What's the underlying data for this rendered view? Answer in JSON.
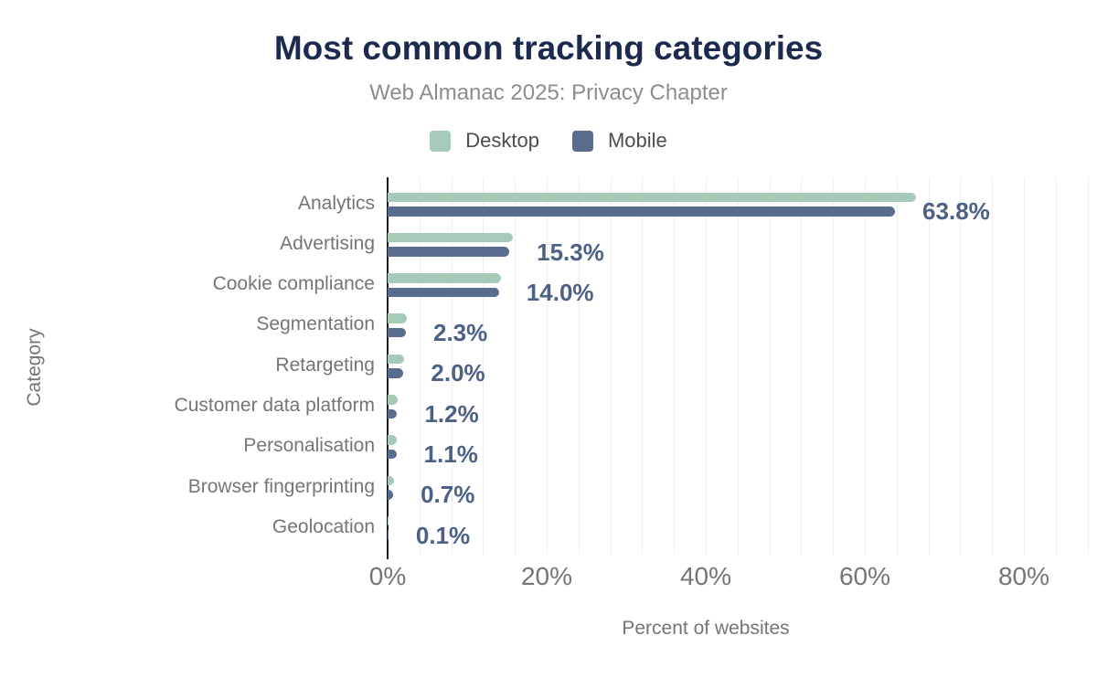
{
  "title": "Most common tracking categories",
  "subtitle": "Web Almanac 2025: Privacy Chapter",
  "legend": {
    "items": [
      {
        "label": "Desktop",
        "color": "#a5cab7"
      },
      {
        "label": "Mobile",
        "color": "#5a6c8e"
      }
    ]
  },
  "chart_data": {
    "type": "bar",
    "orientation": "horizontal",
    "title": "Most common tracking categories",
    "subtitle": "Web Almanac 2025: Privacy Chapter",
    "xlabel": "Percent of websites",
    "ylabel": "Category",
    "legend_position": "top",
    "grid": "vertical minor gridlines every 4%",
    "xlim": [
      0,
      88.5
    ],
    "x_ticks": [
      {
        "label": "0%",
        "value": 0
      },
      {
        "label": "20%",
        "value": 20
      },
      {
        "label": "40%",
        "value": 40
      },
      {
        "label": "60%",
        "value": 60
      },
      {
        "label": "80%",
        "value": 80
      }
    ],
    "categories": [
      "Analytics",
      "Advertising",
      "Cookie compliance",
      "Segmentation",
      "Retargeting",
      "Customer data platform",
      "Personalisation",
      "Browser fingerprinting",
      "Geolocation"
    ],
    "series": [
      {
        "name": "Desktop",
        "color": "#a5cab7",
        "values": [
          66.4,
          15.8,
          14.3,
          2.4,
          2.1,
          1.3,
          1.2,
          0.8,
          0.1
        ]
      },
      {
        "name": "Mobile",
        "color": "#5a6c8e",
        "values": [
          63.8,
          15.3,
          14.0,
          2.3,
          2.0,
          1.2,
          1.1,
          0.7,
          0.1
        ]
      }
    ],
    "data_labels": [
      "63.8%",
      "15.3%",
      "14.0%",
      "2.3%",
      "2.0%",
      "1.2%",
      "1.1%",
      "0.7%",
      "0.1%"
    ],
    "data_labels_series": "Mobile"
  },
  "colors": {
    "title": "#1c2b4d",
    "subtitle": "#8d8d8d",
    "axis_text": "#757575",
    "value_label": "#4d6187",
    "desktop_bar": "#a5cab7",
    "mobile_bar": "#5a6c8e",
    "gridline": "#ededf2",
    "axis_line": "#1a1a1a"
  }
}
